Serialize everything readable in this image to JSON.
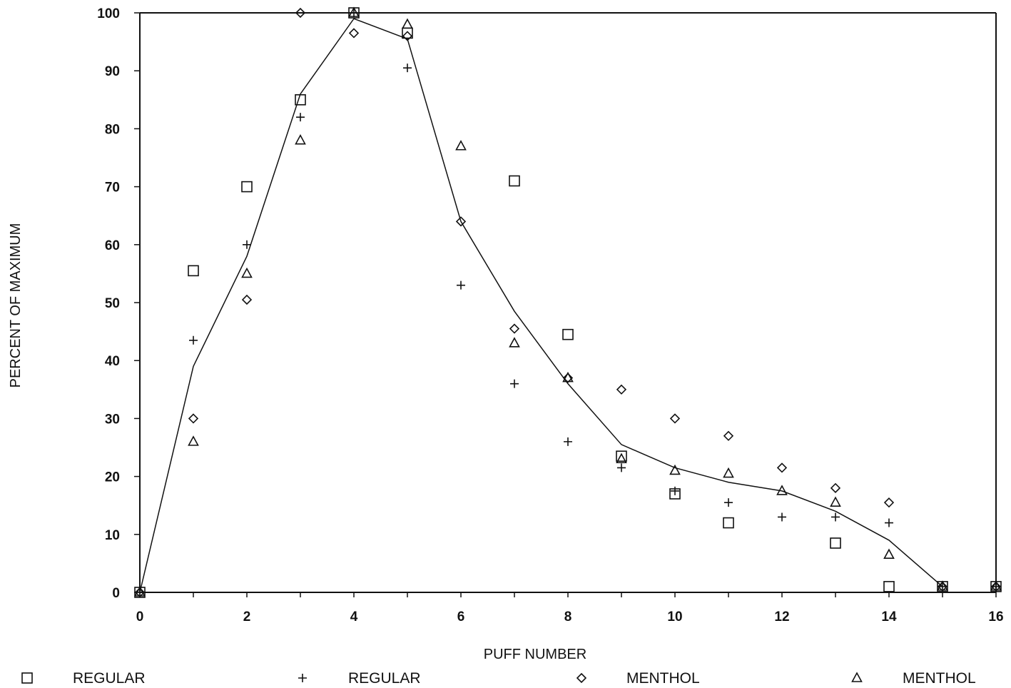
{
  "chart_data": {
    "type": "scatter",
    "title": "",
    "xlabel": "PUFF NUMBER",
    "ylabel": "PERCENT OF MAXIMUM",
    "xlim": [
      0,
      16
    ],
    "ylim": [
      0,
      100
    ],
    "xticks": [
      0,
      2,
      4,
      6,
      8,
      10,
      12,
      14,
      16
    ],
    "yticks": [
      0,
      10,
      20,
      30,
      40,
      50,
      60,
      70,
      80,
      90,
      100
    ],
    "grid": false,
    "legend_position": "bottom",
    "series": [
      {
        "name": "REGULAR",
        "marker": "square",
        "x": [
          0,
          1,
          2,
          3,
          4,
          5,
          7,
          8,
          9,
          10,
          11,
          13,
          14,
          15,
          16
        ],
        "y": [
          0,
          55.5,
          70,
          85,
          100,
          96.5,
          71,
          44.5,
          23.5,
          17,
          12,
          8.5,
          1,
          1,
          1
        ]
      },
      {
        "name": "REGULAR",
        "marker": "plus",
        "x": [
          0,
          1,
          2,
          3,
          4,
          5,
          6,
          7,
          8,
          9,
          10,
          11,
          12,
          13,
          14,
          15,
          16
        ],
        "y": [
          0,
          43.5,
          60,
          82,
          100,
          90.5,
          53,
          36,
          26,
          21.5,
          17.5,
          15.5,
          13,
          13,
          12,
          1,
          1
        ]
      },
      {
        "name": "MENTHOL",
        "marker": "diamond",
        "x": [
          0,
          1,
          2,
          3,
          4,
          5,
          6,
          7,
          8,
          9,
          10,
          11,
          12,
          13,
          14,
          15,
          16
        ],
        "y": [
          0,
          30,
          50.5,
          100,
          96.5,
          96,
          64,
          45.5,
          37,
          35,
          30,
          27,
          21.5,
          18,
          15.5,
          1,
          1
        ]
      },
      {
        "name": "MENTHOL",
        "marker": "triangle",
        "x": [
          0,
          1,
          2,
          3,
          4,
          5,
          6,
          7,
          8,
          9,
          10,
          11,
          12,
          13,
          14,
          15,
          16
        ],
        "y": [
          0,
          26,
          55,
          78,
          100,
          98,
          77,
          43,
          37,
          23,
          21,
          20.5,
          17.5,
          15.5,
          6.5,
          1,
          1
        ]
      }
    ],
    "fit_line": {
      "x": [
        0,
        1,
        2,
        3,
        4,
        5,
        6,
        7,
        8,
        9,
        10,
        11,
        12,
        13,
        14,
        15
      ],
      "y": [
        0,
        39,
        58,
        86,
        99,
        95.5,
        64,
        48.5,
        36,
        25.5,
        21.5,
        19,
        17.5,
        14,
        9,
        1
      ]
    }
  }
}
